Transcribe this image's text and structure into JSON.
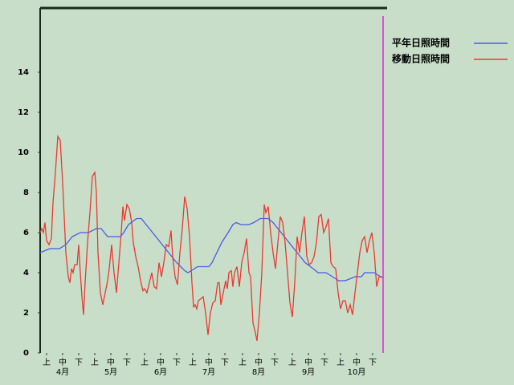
{
  "chart_data": {
    "type": "line",
    "xlim": [
      0,
      216
    ],
    "ylim": [
      0,
      17.2
    ],
    "yticks": [
      0,
      2,
      4,
      6,
      8,
      10,
      12,
      14
    ],
    "xticks": [
      {
        "value": 4,
        "label": "上"
      },
      {
        "value": 14,
        "label": "中"
      },
      {
        "value": 24,
        "label": "下"
      },
      {
        "value": 34,
        "label": "上"
      },
      {
        "value": 44,
        "label": "中"
      },
      {
        "value": 54,
        "label": "下"
      },
      {
        "value": 65,
        "label": "上"
      },
      {
        "value": 75,
        "label": "中"
      },
      {
        "value": 85,
        "label": "下"
      },
      {
        "value": 95,
        "label": "上"
      },
      {
        "value": 105,
        "label": "中"
      },
      {
        "value": 115,
        "label": "下"
      },
      {
        "value": 126,
        "label": "上"
      },
      {
        "value": 136,
        "label": "中"
      },
      {
        "value": 146,
        "label": "下"
      },
      {
        "value": 157,
        "label": "上"
      },
      {
        "value": 167,
        "label": "中"
      },
      {
        "value": 177,
        "label": "下"
      },
      {
        "value": 187,
        "label": "上"
      },
      {
        "value": 197,
        "label": "中"
      },
      {
        "value": 207,
        "label": "下"
      }
    ],
    "month_ticks": [
      {
        "value": 14,
        "label": "4月"
      },
      {
        "value": 44,
        "label": "5月"
      },
      {
        "value": 75,
        "label": "6月"
      },
      {
        "value": 105,
        "label": "7月"
      },
      {
        "value": 136,
        "label": "8月"
      },
      {
        "value": 167,
        "label": "9月"
      },
      {
        "value": 197,
        "label": "10月"
      }
    ],
    "today_line": {
      "x": 213.5,
      "color": "#e050e0"
    },
    "series": [
      {
        "name": "平年日照時間",
        "color": "#4a5ae8",
        "x": [
          0,
          3,
          6,
          12,
          16,
          20,
          25,
          30,
          35,
          38,
          42,
          50,
          52,
          55,
          60,
          63,
          65,
          70,
          75,
          80,
          85,
          90,
          92,
          96,
          98,
          105,
          107,
          110,
          113,
          117,
          120,
          122,
          125,
          130,
          133,
          137,
          142,
          145,
          150,
          155,
          160,
          165,
          170,
          173,
          178,
          182,
          186,
          190,
          193,
          196,
          200,
          202,
          208,
          212,
          214
        ],
        "values": [
          5.0,
          5.1,
          5.2,
          5.2,
          5.4,
          5.8,
          6.0,
          6.0,
          6.2,
          6.2,
          5.8,
          5.8,
          6.0,
          6.4,
          6.7,
          6.7,
          6.5,
          6.0,
          5.5,
          5.0,
          4.5,
          4.1,
          4.0,
          4.2,
          4.3,
          4.3,
          4.5,
          5.0,
          5.5,
          6.0,
          6.4,
          6.5,
          6.4,
          6.4,
          6.5,
          6.7,
          6.7,
          6.5,
          6.0,
          5.5,
          5.0,
          4.5,
          4.2,
          4.0,
          4.0,
          3.8,
          3.6,
          3.6,
          3.7,
          3.8,
          3.8,
          4.0,
          4.0,
          3.8,
          3.7
        ]
      },
      {
        "name": "移動日照時間",
        "color": "#e83a32",
        "x": [
          0,
          1,
          2,
          3,
          4,
          5.5,
          7,
          8,
          9.5,
          11,
          12.5,
          14,
          16,
          17.5,
          18.5,
          19.5,
          20.5,
          21.5,
          23,
          24,
          25,
          26,
          27,
          28,
          29.5,
          31,
          32.5,
          34,
          35,
          36,
          37.5,
          39,
          40.5,
          42,
          43,
          44.5,
          46,
          47.5,
          49,
          50.5,
          51.5,
          52.5,
          54,
          55.5,
          57,
          58,
          59.5,
          61,
          62.5,
          64,
          65,
          66.5,
          68,
          69.5,
          71,
          72.5,
          74,
          75.5,
          77,
          78.5,
          80,
          81.5,
          82.5,
          84,
          85.5,
          87,
          88.5,
          90,
          91.5,
          93,
          94.5,
          95.5,
          96.5,
          97.5,
          98.5,
          100,
          101.5,
          103,
          104.5,
          106,
          107.5,
          109,
          110.5,
          111.5,
          112.5,
          114,
          115.5,
          116.5,
          117.5,
          119,
          120,
          121,
          122.5,
          124,
          125.5,
          127,
          128.5,
          130,
          131,
          132.5,
          134,
          135,
          136.5,
          138,
          139.5,
          140.5,
          142,
          143.5,
          145,
          146.5,
          148,
          149.5,
          151,
          152.5,
          154,
          155.5,
          157,
          158.5,
          160,
          161.5,
          163,
          164.5,
          166,
          167.5,
          169,
          170.5,
          172,
          173.5,
          175,
          176.5,
          178,
          179.5,
          181,
          182.5,
          184,
          185.5,
          187,
          188.5,
          190,
          191.5,
          193,
          194.5,
          196,
          197.5,
          199,
          200.5,
          202,
          203.5,
          205,
          206.5,
          208,
          209.5,
          211,
          213
        ],
        "values": [
          6.0,
          6.2,
          6.0,
          6.5,
          5.6,
          5.4,
          5.7,
          7.5,
          9.0,
          10.8,
          10.6,
          8.5,
          5.0,
          3.8,
          3.5,
          4.2,
          4.0,
          4.4,
          4.4,
          5.4,
          4.0,
          2.8,
          1.9,
          3.5,
          5.5,
          7.0,
          8.8,
          9.0,
          8.0,
          5.0,
          3.0,
          2.4,
          3.0,
          3.6,
          4.2,
          5.4,
          4.0,
          3.0,
          4.5,
          6.0,
          7.3,
          6.6,
          7.4,
          7.2,
          6.5,
          5.5,
          4.8,
          4.3,
          3.6,
          3.1,
          3.2,
          3.0,
          3.5,
          4.0,
          3.3,
          3.2,
          4.5,
          3.8,
          4.5,
          5.4,
          5.3,
          6.1,
          4.8,
          3.8,
          3.4,
          5.0,
          6.2,
          7.8,
          7.2,
          5.8,
          3.5,
          2.3,
          2.4,
          2.2,
          2.6,
          2.7,
          2.8,
          2.0,
          0.9,
          2.0,
          2.5,
          2.6,
          3.5,
          3.5,
          2.4,
          3.0,
          3.6,
          3.2,
          4.0,
          4.1,
          3.3,
          4.0,
          4.3,
          3.3,
          4.5,
          5.0,
          5.7,
          4.0,
          3.8,
          1.5,
          1.0,
          0.6,
          2.0,
          4.0,
          7.4,
          7.0,
          7.3,
          6.0,
          5.0,
          4.2,
          5.5,
          6.8,
          6.5,
          5.5,
          4.0,
          2.5,
          1.8,
          3.5,
          5.8,
          5.0,
          6.0,
          6.8,
          4.8,
          4.4,
          4.5,
          4.8,
          5.5,
          6.8,
          6.9,
          6.0,
          6.3,
          6.7,
          4.5,
          4.3,
          4.2,
          3.0,
          2.2,
          2.6,
          2.6,
          2.0,
          2.4,
          1.9,
          3.0,
          4.0,
          5.0,
          5.6,
          5.8,
          5.0,
          5.6,
          6.0,
          5.0,
          3.3,
          3.8,
          3.8
        ]
      }
    ]
  }
}
